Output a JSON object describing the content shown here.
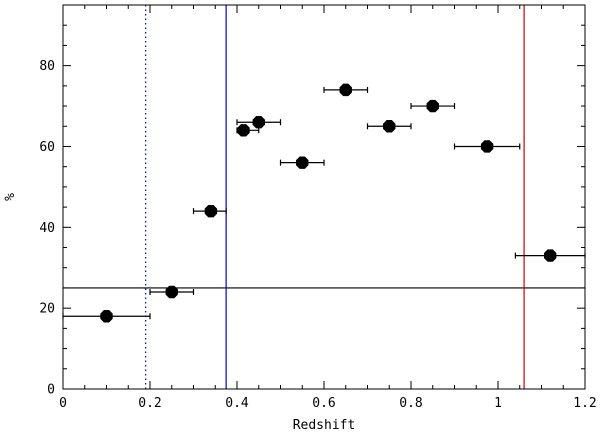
{
  "chart_data": {
    "type": "scatter",
    "title": "",
    "xlabel": "Redshift",
    "ylabel": "%",
    "xlim": [
      0,
      1.2
    ],
    "ylim": [
      0,
      95
    ],
    "x_ticks": [
      0,
      0.2,
      0.4,
      0.6,
      0.8,
      1.0,
      1.2
    ],
    "x_tick_labels": [
      "0",
      "0.2",
      "0.4",
      "0.6",
      "0.8",
      "1",
      "1.2"
    ],
    "y_ticks": [
      0,
      20,
      40,
      60,
      80
    ],
    "y_tick_labels": [
      "0",
      "20",
      "40",
      "60",
      "80"
    ],
    "x_minor_step": 0.05,
    "y_minor_step": 5,
    "grid": false,
    "legend": "none",
    "points": [
      {
        "x": 0.1,
        "y": 18,
        "xlo": 0.0,
        "xhi": 0.2
      },
      {
        "x": 0.25,
        "y": 24,
        "xlo": 0.2,
        "xhi": 0.3
      },
      {
        "x": 0.34,
        "y": 44,
        "xlo": 0.3,
        "xhi": 0.375
      },
      {
        "x": 0.415,
        "y": 64,
        "xlo": 0.4,
        "xhi": 0.45
      },
      {
        "x": 0.45,
        "y": 66,
        "xlo": 0.4,
        "xhi": 0.5
      },
      {
        "x": 0.55,
        "y": 56,
        "xlo": 0.5,
        "xhi": 0.6
      },
      {
        "x": 0.65,
        "y": 74,
        "xlo": 0.6,
        "xhi": 0.7
      },
      {
        "x": 0.75,
        "y": 65,
        "xlo": 0.7,
        "xhi": 0.8
      },
      {
        "x": 0.85,
        "y": 70,
        "xlo": 0.8,
        "xhi": 0.9
      },
      {
        "x": 0.975,
        "y": 60,
        "xlo": 0.9,
        "xhi": 1.05
      },
      {
        "x": 1.12,
        "y": 33,
        "xlo": 1.04,
        "xhi": 1.2
      }
    ],
    "reference_lines": [
      {
        "orientation": "horizontal",
        "value": 25,
        "color": "#000000",
        "style": "solid"
      },
      {
        "orientation": "vertical",
        "value": 0.19,
        "color": "#0000cc",
        "style": "dotted"
      },
      {
        "orientation": "vertical",
        "value": 0.375,
        "color": "#0000cc",
        "style": "solid"
      },
      {
        "orientation": "vertical",
        "value": 1.06,
        "color": "#cc0000",
        "style": "solid"
      }
    ],
    "marker_color": "#000000"
  }
}
